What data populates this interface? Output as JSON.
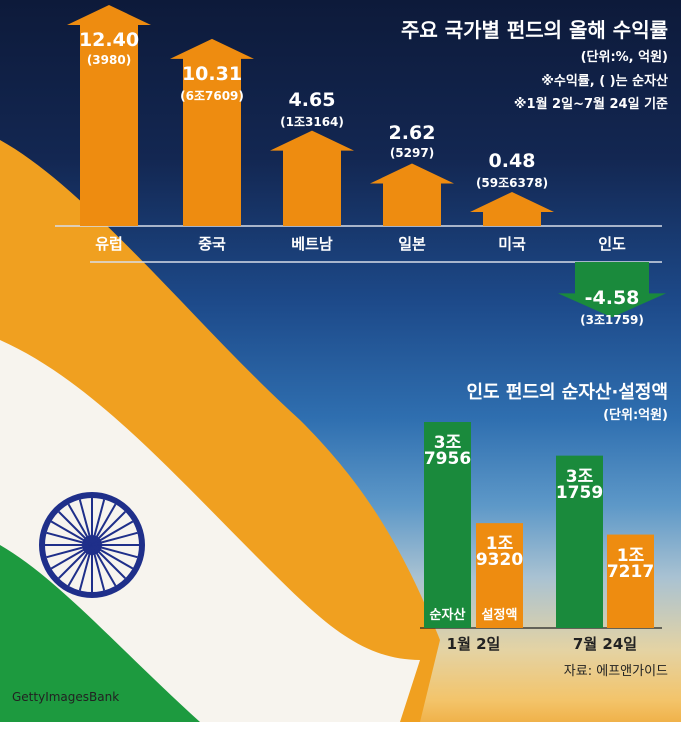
{
  "colors": {
    "orange": "#ee8c10",
    "green": "#1a8a3c",
    "navy": "#0d1a3a"
  },
  "chart_data": [
    {
      "type": "bar",
      "title": "주요 국가별 펀드의 올해 수익률",
      "notes": [
        "(단위:%, 억원)",
        "※수익률, ( )는 순자산",
        "※1월 2일~7월 24일 기준"
      ],
      "categories": [
        "유럽",
        "중국",
        "베트남",
        "일본",
        "미국",
        "인도"
      ],
      "series": [
        {
          "name": "수익률",
          "values": [
            12.4,
            10.31,
            4.65,
            2.62,
            0.48,
            -4.58
          ]
        }
      ],
      "value_labels": [
        "12.40",
        "10.31",
        "4.65",
        "2.62",
        "0.48",
        "-4.58"
      ],
      "net_assets_labels": [
        "(3980)",
        "(6조7609)",
        "(1조3164)",
        "(5297)",
        "(59조6378)",
        "(3조1759)"
      ]
    },
    {
      "type": "bar",
      "title": "인도 펀드의 순자산·설정액",
      "unit": "(단위:억원)",
      "categories": [
        "1월 2일",
        "7월 24일"
      ],
      "series": [
        {
          "name": "순자산",
          "values": [
            37956,
            31759
          ],
          "labels": [
            [
              "3조",
              "7956"
            ],
            [
              "3조",
              "1759"
            ]
          ]
        },
        {
          "name": "설정액",
          "values": [
            19320,
            17217
          ],
          "labels": [
            [
              "1조",
              "9320"
            ],
            [
              "1조",
              "7217"
            ]
          ]
        }
      ],
      "source": "자료: 에프앤가이드"
    }
  ],
  "credit": "GettyImagesBank"
}
